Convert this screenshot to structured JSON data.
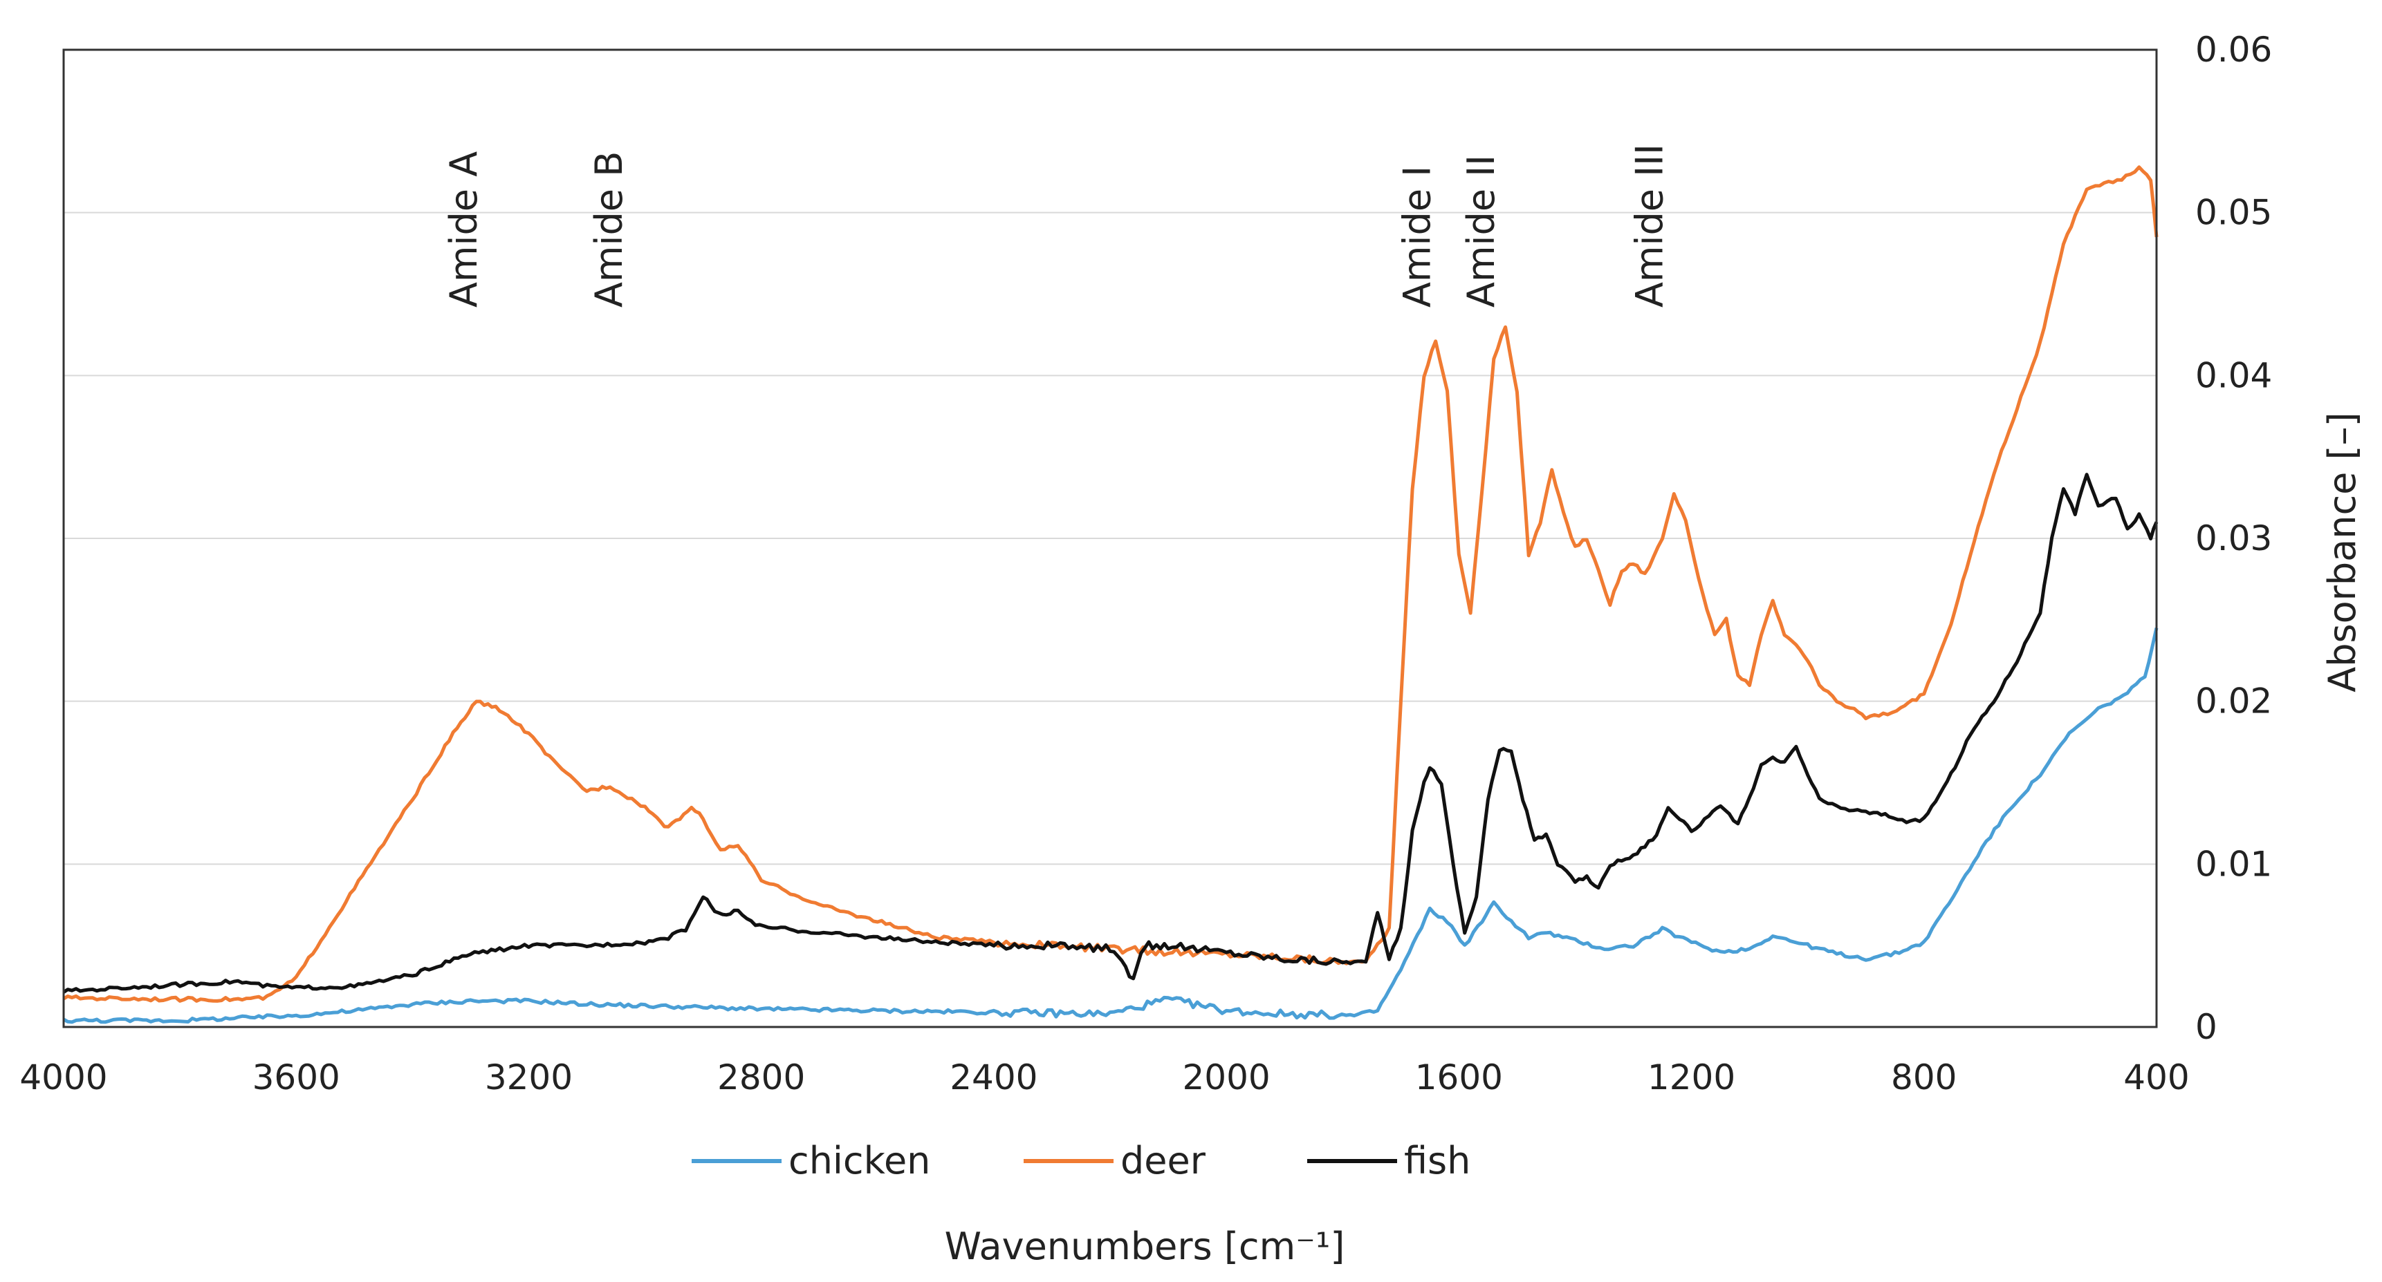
{
  "chart_data": {
    "type": "line",
    "title": "",
    "xlabel": "Wavenumbers [cm⁻¹]",
    "ylabel": "Absorbance [–]",
    "xlim": [
      4000,
      400
    ],
    "ylim": [
      0,
      0.06
    ],
    "x_reversed": true,
    "grid": true,
    "legend_position": "bottom-center",
    "x_ticks": [
      4000,
      3600,
      3200,
      2800,
      2400,
      2000,
      1600,
      1200,
      800,
      400
    ],
    "x_tick_labels": [
      "4000",
      "3600",
      "3200",
      "2800",
      "2400",
      "2000",
      "1600",
      "1200",
      "800",
      "400"
    ],
    "y_ticks": [
      0,
      0.01,
      0.02,
      0.03,
      0.04,
      0.05,
      0.06
    ],
    "y_tick_labels": [
      "0",
      "0.01",
      "0.02",
      "0.03",
      "0.04",
      "0.05",
      "0.06"
    ],
    "annotations": [
      {
        "text": "Amide A",
        "x": 3290
      },
      {
        "text": "Amide B",
        "x": 3040
      },
      {
        "text": "Amide I",
        "x": 1650
      },
      {
        "text": "Amide II",
        "x": 1540
      },
      {
        "text": "Amide III",
        "x": 1250
      }
    ],
    "series": [
      {
        "name": "chicken",
        "color": "#4a9fd6",
        "points": [
          [
            4000,
            0.0004
          ],
          [
            3800,
            0.0004
          ],
          [
            3600,
            0.0007
          ],
          [
            3500,
            0.001
          ],
          [
            3400,
            0.0014
          ],
          [
            3300,
            0.0016
          ],
          [
            3200,
            0.0016
          ],
          [
            3100,
            0.0014
          ],
          [
            3000,
            0.0013
          ],
          [
            2900,
            0.0012
          ],
          [
            2800,
            0.0011
          ],
          [
            2600,
            0.001
          ],
          [
            2400,
            0.0009
          ],
          [
            2200,
            0.0008
          ],
          [
            2100,
            0.0017
          ],
          [
            2000,
            0.001
          ],
          [
            1900,
            0.0008
          ],
          [
            1780,
            0.0007
          ],
          [
            1740,
            0.001
          ],
          [
            1700,
            0.0035
          ],
          [
            1650,
            0.0072
          ],
          [
            1620,
            0.0065
          ],
          [
            1590,
            0.005
          ],
          [
            1560,
            0.0065
          ],
          [
            1540,
            0.0076
          ],
          [
            1510,
            0.0065
          ],
          [
            1480,
            0.0055
          ],
          [
            1450,
            0.0058
          ],
          [
            1400,
            0.0053
          ],
          [
            1350,
            0.0048
          ],
          [
            1300,
            0.005
          ],
          [
            1250,
            0.006
          ],
          [
            1200,
            0.0052
          ],
          [
            1150,
            0.0046
          ],
          [
            1100,
            0.0048
          ],
          [
            1060,
            0.0056
          ],
          [
            1000,
            0.005
          ],
          [
            950,
            0.0045
          ],
          [
            900,
            0.0042
          ],
          [
            850,
            0.0045
          ],
          [
            800,
            0.0052
          ],
          [
            750,
            0.008
          ],
          [
            700,
            0.011
          ],
          [
            650,
            0.0135
          ],
          [
            600,
            0.0155
          ],
          [
            550,
            0.018
          ],
          [
            500,
            0.0195
          ],
          [
            450,
            0.0205
          ],
          [
            420,
            0.0215
          ],
          [
            400,
            0.0245
          ]
        ]
      },
      {
        "name": "deer",
        "color": "#f07b32",
        "points": [
          [
            4000,
            0.0018
          ],
          [
            3800,
            0.0017
          ],
          [
            3700,
            0.0017
          ],
          [
            3650,
            0.0018
          ],
          [
            3600,
            0.003
          ],
          [
            3500,
            0.0085
          ],
          [
            3400,
            0.014
          ],
          [
            3330,
            0.018
          ],
          [
            3290,
            0.02
          ],
          [
            3250,
            0.0195
          ],
          [
            3200,
            0.018
          ],
          [
            3150,
            0.016
          ],
          [
            3100,
            0.0145
          ],
          [
            3060,
            0.0148
          ],
          [
            3000,
            0.0135
          ],
          [
            2960,
            0.0122
          ],
          [
            2920,
            0.0135
          ],
          [
            2900,
            0.0128
          ],
          [
            2870,
            0.0108
          ],
          [
            2840,
            0.0112
          ],
          [
            2800,
            0.009
          ],
          [
            2700,
            0.0075
          ],
          [
            2600,
            0.0065
          ],
          [
            2500,
            0.0055
          ],
          [
            2400,
            0.0052
          ],
          [
            2300,
            0.005
          ],
          [
            2200,
            0.0048
          ],
          [
            2100,
            0.0046
          ],
          [
            2000,
            0.0045
          ],
          [
            1900,
            0.0043
          ],
          [
            1800,
            0.004
          ],
          [
            1760,
            0.004
          ],
          [
            1720,
            0.006
          ],
          [
            1700,
            0.02
          ],
          [
            1680,
            0.033
          ],
          [
            1660,
            0.04
          ],
          [
            1640,
            0.0422
          ],
          [
            1620,
            0.039
          ],
          [
            1600,
            0.029
          ],
          [
            1580,
            0.0255
          ],
          [
            1560,
            0.033
          ],
          [
            1540,
            0.041
          ],
          [
            1520,
            0.043
          ],
          [
            1500,
            0.039
          ],
          [
            1480,
            0.029
          ],
          [
            1460,
            0.031
          ],
          [
            1440,
            0.0342
          ],
          [
            1420,
            0.0315
          ],
          [
            1400,
            0.0295
          ],
          [
            1380,
            0.03
          ],
          [
            1360,
            0.028
          ],
          [
            1340,
            0.026
          ],
          [
            1320,
            0.028
          ],
          [
            1300,
            0.0285
          ],
          [
            1280,
            0.0278
          ],
          [
            1250,
            0.03
          ],
          [
            1230,
            0.0328
          ],
          [
            1210,
            0.031
          ],
          [
            1180,
            0.0265
          ],
          [
            1160,
            0.024
          ],
          [
            1140,
            0.025
          ],
          [
            1120,
            0.0215
          ],
          [
            1100,
            0.021
          ],
          [
            1080,
            0.024
          ],
          [
            1060,
            0.0262
          ],
          [
            1040,
            0.024
          ],
          [
            1020,
            0.0235
          ],
          [
            1000,
            0.0225
          ],
          [
            980,
            0.021
          ],
          [
            950,
            0.02
          ],
          [
            920,
            0.0195
          ],
          [
            900,
            0.019
          ],
          [
            870,
            0.0192
          ],
          [
            840,
            0.0195
          ],
          [
            800,
            0.0205
          ],
          [
            760,
            0.024
          ],
          [
            720,
            0.029
          ],
          [
            680,
            0.034
          ],
          [
            640,
            0.038
          ],
          [
            600,
            0.042
          ],
          [
            560,
            0.048
          ],
          [
            520,
            0.0515
          ],
          [
            490,
            0.0518
          ],
          [
            460,
            0.052
          ],
          [
            430,
            0.0528
          ],
          [
            410,
            0.052
          ],
          [
            400,
            0.0485
          ]
        ]
      },
      {
        "name": "fish",
        "color": "#111111",
        "points": [
          [
            4000,
            0.0022
          ],
          [
            3900,
            0.0024
          ],
          [
            3800,
            0.0026
          ],
          [
            3700,
            0.0028
          ],
          [
            3650,
            0.0025
          ],
          [
            3600,
            0.0024
          ],
          [
            3500,
            0.0025
          ],
          [
            3400,
            0.0032
          ],
          [
            3300,
            0.0045
          ],
          [
            3200,
            0.005
          ],
          [
            3100,
            0.005
          ],
          [
            3000,
            0.0052
          ],
          [
            2960,
            0.0055
          ],
          [
            2930,
            0.006
          ],
          [
            2900,
            0.008
          ],
          [
            2880,
            0.0072
          ],
          [
            2860,
            0.0068
          ],
          [
            2840,
            0.0072
          ],
          [
            2810,
            0.0062
          ],
          [
            2700,
            0.0058
          ],
          [
            2600,
            0.0055
          ],
          [
            2500,
            0.0052
          ],
          [
            2400,
            0.005
          ],
          [
            2300,
            0.005
          ],
          [
            2200,
            0.0048
          ],
          [
            2160,
            0.003
          ],
          [
            2140,
            0.005
          ],
          [
            2100,
            0.005
          ],
          [
            2000,
            0.0046
          ],
          [
            1900,
            0.0042
          ],
          [
            1800,
            0.004
          ],
          [
            1760,
            0.004
          ],
          [
            1740,
            0.007
          ],
          [
            1720,
            0.0042
          ],
          [
            1700,
            0.006
          ],
          [
            1680,
            0.012
          ],
          [
            1660,
            0.015
          ],
          [
            1650,
            0.016
          ],
          [
            1630,
            0.015
          ],
          [
            1610,
            0.01
          ],
          [
            1590,
            0.0058
          ],
          [
            1570,
            0.008
          ],
          [
            1550,
            0.014
          ],
          [
            1530,
            0.017
          ],
          [
            1510,
            0.017
          ],
          [
            1490,
            0.014
          ],
          [
            1470,
            0.0115
          ],
          [
            1450,
            0.0118
          ],
          [
            1430,
            0.01
          ],
          [
            1400,
            0.009
          ],
          [
            1380,
            0.0092
          ],
          [
            1360,
            0.0085
          ],
          [
            1340,
            0.01
          ],
          [
            1300,
            0.0105
          ],
          [
            1260,
            0.0118
          ],
          [
            1240,
            0.0135
          ],
          [
            1220,
            0.0128
          ],
          [
            1200,
            0.012
          ],
          [
            1170,
            0.013
          ],
          [
            1150,
            0.0135
          ],
          [
            1120,
            0.0125
          ],
          [
            1100,
            0.014
          ],
          [
            1080,
            0.016
          ],
          [
            1060,
            0.0165
          ],
          [
            1040,
            0.0162
          ],
          [
            1020,
            0.0172
          ],
          [
            1000,
            0.0155
          ],
          [
            980,
            0.014
          ],
          [
            950,
            0.0135
          ],
          [
            900,
            0.0132
          ],
          [
            860,
            0.013
          ],
          [
            830,
            0.0125
          ],
          [
            800,
            0.0128
          ],
          [
            760,
            0.015
          ],
          [
            720,
            0.018
          ],
          [
            680,
            0.02
          ],
          [
            640,
            0.0225
          ],
          [
            600,
            0.0255
          ],
          [
            580,
            0.03
          ],
          [
            560,
            0.033
          ],
          [
            540,
            0.0315
          ],
          [
            520,
            0.034
          ],
          [
            500,
            0.032
          ],
          [
            470,
            0.0325
          ],
          [
            450,
            0.0305
          ],
          [
            430,
            0.0315
          ],
          [
            410,
            0.03
          ],
          [
            400,
            0.031
          ]
        ]
      }
    ]
  }
}
